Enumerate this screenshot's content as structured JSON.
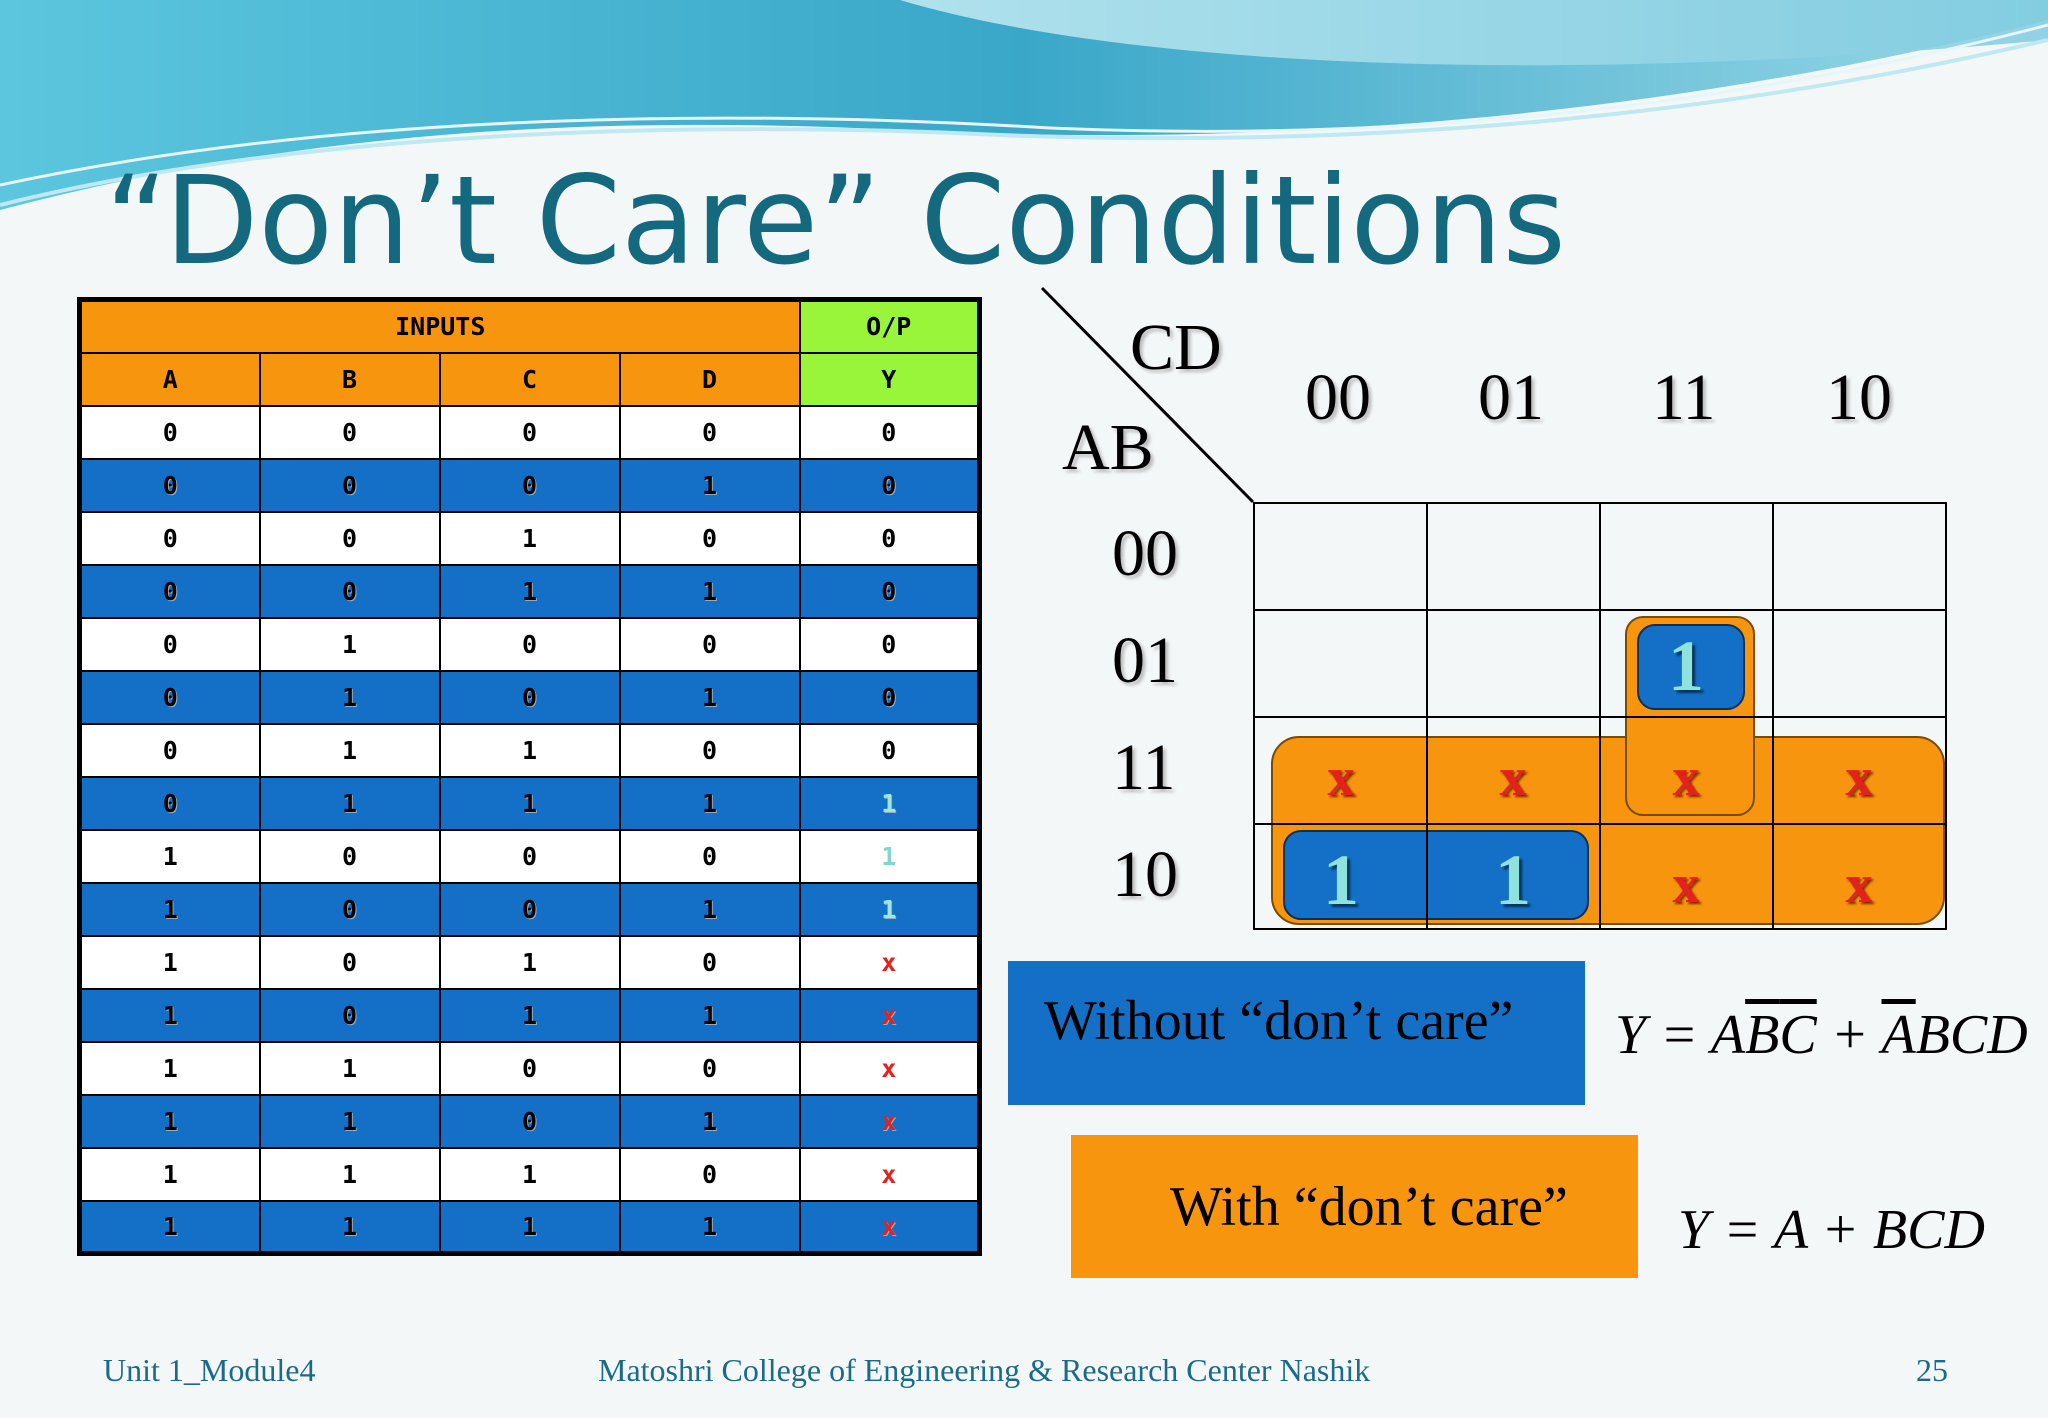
{
  "title": "“Don’t Care” Conditions",
  "truth_table": {
    "group_headers": {
      "inputs": "INPUTS",
      "output": "O/P"
    },
    "columns": [
      "A",
      "B",
      "C",
      "D",
      "Y"
    ],
    "rows": [
      [
        "0",
        "0",
        "0",
        "0",
        "0"
      ],
      [
        "0",
        "0",
        "0",
        "1",
        "0"
      ],
      [
        "0",
        "0",
        "1",
        "0",
        "0"
      ],
      [
        "0",
        "0",
        "1",
        "1",
        "0"
      ],
      [
        "0",
        "1",
        "0",
        "0",
        "0"
      ],
      [
        "0",
        "1",
        "0",
        "1",
        "0"
      ],
      [
        "0",
        "1",
        "1",
        "0",
        "0"
      ],
      [
        "0",
        "1",
        "1",
        "1",
        "1"
      ],
      [
        "1",
        "0",
        "0",
        "0",
        "1"
      ],
      [
        "1",
        "0",
        "0",
        "1",
        "1"
      ],
      [
        "1",
        "0",
        "1",
        "0",
        "x"
      ],
      [
        "1",
        "0",
        "1",
        "1",
        "x"
      ],
      [
        "1",
        "1",
        "0",
        "0",
        "x"
      ],
      [
        "1",
        "1",
        "0",
        "1",
        "x"
      ],
      [
        "1",
        "1",
        "1",
        "0",
        "x"
      ],
      [
        "1",
        "1",
        "1",
        "1",
        "x"
      ]
    ],
    "colors": {
      "header_inputs": "#f7950e",
      "header_output": "#99f53a",
      "row_blue": "#1470c6",
      "dont_care": "#e4211d"
    }
  },
  "kmap": {
    "col_var": "CD",
    "row_var": "AB",
    "col_labels": [
      "00",
      "01",
      "11",
      "10"
    ],
    "row_labels": [
      "00",
      "01",
      "11",
      "10"
    ],
    "cells": [
      [
        "",
        "",
        "",
        ""
      ],
      [
        "",
        "",
        "1",
        ""
      ],
      [
        "x",
        "x",
        "x",
        "x"
      ],
      [
        "1",
        "1",
        "x",
        "x"
      ]
    ]
  },
  "without_label": "Without “don’t care”",
  "with_label": "With “don’t care”",
  "equations": {
    "without": {
      "p1": "Y = A",
      "p2": "B",
      "p3": "C",
      "p4": " + ",
      "p5": "A",
      "p6": "BCD"
    },
    "with": "Y = A + BCD"
  },
  "footer": {
    "left": "Unit 1_Module4",
    "center": "Matoshri College of Engineering & Research Center Nashik",
    "page": "25"
  }
}
